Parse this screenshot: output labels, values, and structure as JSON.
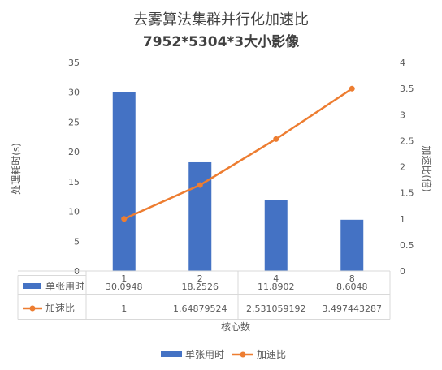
{
  "chart_data": {
    "type": "bar",
    "title": "去雾算法集群并行化加速比",
    "subtitle": "7952*5304*3大小影像",
    "xlabel": "核心数",
    "ylabel_left": "处理耗时(s)",
    "ylabel_right": "加速比(倍)",
    "categories": [
      "1",
      "2",
      "4",
      "8"
    ],
    "ylim_left": [
      0,
      35
    ],
    "ylim_right": [
      0,
      4
    ],
    "yticks_left": [
      "0",
      "5",
      "10",
      "15",
      "20",
      "25",
      "30",
      "35"
    ],
    "yticks_right": [
      "0",
      "0.5",
      "1",
      "1.5",
      "2",
      "2.5",
      "3",
      "3.5",
      "4"
    ],
    "grid": false,
    "legend_position": "bottom",
    "series": [
      {
        "name": "单张用时",
        "type": "bar",
        "axis": "left",
        "color": "#4472C4",
        "values": [
          30.0948,
          18.2526,
          11.8902,
          8.6048
        ],
        "labels": [
          "30.0948",
          "18.2526",
          "11.8902",
          "8.6048"
        ]
      },
      {
        "name": "加速比",
        "type": "line",
        "axis": "right",
        "color": "#ED7D31",
        "values": [
          1,
          1.64879524,
          2.531059192,
          3.497443287
        ],
        "labels": [
          "1",
          "1.64879524",
          "2.531059192",
          "3.497443287"
        ]
      }
    ]
  }
}
